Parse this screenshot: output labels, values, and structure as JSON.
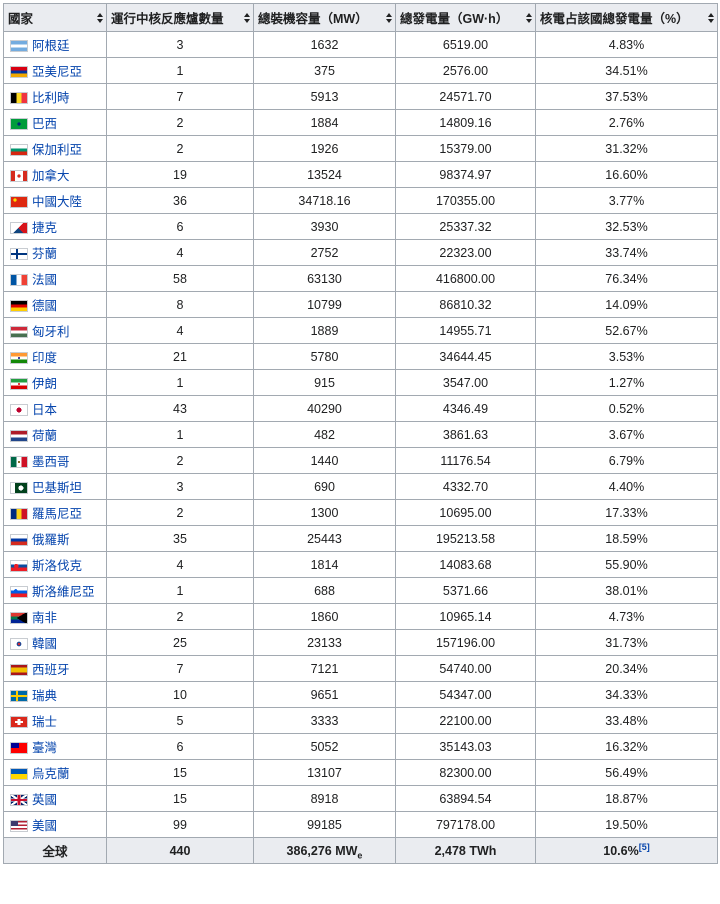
{
  "headers": [
    "國家",
    "運行中核反應爐數量",
    "總裝機容量（MW）",
    "總發電量（GW·h）",
    "核電占該國總發電量（%）"
  ],
  "rows": [
    {
      "country": "阿根廷",
      "flag": "argentina",
      "reactors": "3",
      "capacity": "1632",
      "generation": "6519.00",
      "share": "4.83%"
    },
    {
      "country": "亞美尼亞",
      "flag": "armenia",
      "reactors": "1",
      "capacity": "375",
      "generation": "2576.00",
      "share": "34.51%"
    },
    {
      "country": "比利時",
      "flag": "belgium",
      "reactors": "7",
      "capacity": "5913",
      "generation": "24571.70",
      "share": "37.53%"
    },
    {
      "country": "巴西",
      "flag": "brazil",
      "reactors": "2",
      "capacity": "1884",
      "generation": "14809.16",
      "share": "2.76%"
    },
    {
      "country": "保加利亞",
      "flag": "bulgaria",
      "reactors": "2",
      "capacity": "1926",
      "generation": "15379.00",
      "share": "31.32%"
    },
    {
      "country": "加拿大",
      "flag": "canada",
      "reactors": "19",
      "capacity": "13524",
      "generation": "98374.97",
      "share": "16.60%"
    },
    {
      "country": "中國大陸",
      "flag": "china",
      "reactors": "36",
      "capacity": "34718.16",
      "generation": "170355.00",
      "share": "3.77%"
    },
    {
      "country": "捷克",
      "flag": "czech",
      "reactors": "6",
      "capacity": "3930",
      "generation": "25337.32",
      "share": "32.53%"
    },
    {
      "country": "芬蘭",
      "flag": "finland",
      "reactors": "4",
      "capacity": "2752",
      "generation": "22323.00",
      "share": "33.74%"
    },
    {
      "country": "法國",
      "flag": "france",
      "reactors": "58",
      "capacity": "63130",
      "generation": "416800.00",
      "share": "76.34%"
    },
    {
      "country": "德國",
      "flag": "germany",
      "reactors": "8",
      "capacity": "10799",
      "generation": "86810.32",
      "share": "14.09%"
    },
    {
      "country": "匈牙利",
      "flag": "hungary",
      "reactors": "4",
      "capacity": "1889",
      "generation": "14955.71",
      "share": "52.67%"
    },
    {
      "country": "印度",
      "flag": "india",
      "reactors": "21",
      "capacity": "5780",
      "generation": "34644.45",
      "share": "3.53%"
    },
    {
      "country": "伊朗",
      "flag": "iran",
      "reactors": "1",
      "capacity": "915",
      "generation": "3547.00",
      "share": "1.27%"
    },
    {
      "country": "日本",
      "flag": "japan",
      "reactors": "43",
      "capacity": "40290",
      "generation": "4346.49",
      "share": "0.52%"
    },
    {
      "country": "荷蘭",
      "flag": "netherlands",
      "reactors": "1",
      "capacity": "482",
      "generation": "3861.63",
      "share": "3.67%"
    },
    {
      "country": "墨西哥",
      "flag": "mexico",
      "reactors": "2",
      "capacity": "1440",
      "generation": "11176.54",
      "share": "6.79%"
    },
    {
      "country": "巴基斯坦",
      "flag": "pakistan",
      "reactors": "3",
      "capacity": "690",
      "generation": "4332.70",
      "share": "4.40%"
    },
    {
      "country": "羅馬尼亞",
      "flag": "romania",
      "reactors": "2",
      "capacity": "1300",
      "generation": "10695.00",
      "share": "17.33%"
    },
    {
      "country": "俄羅斯",
      "flag": "russia",
      "reactors": "35",
      "capacity": "25443",
      "generation": "195213.58",
      "share": "18.59%"
    },
    {
      "country": "斯洛伐克",
      "flag": "slovakia",
      "reactors": "4",
      "capacity": "1814",
      "generation": "14083.68",
      "share": "55.90%"
    },
    {
      "country": "斯洛維尼亞",
      "flag": "slovenia",
      "reactors": "1",
      "capacity": "688",
      "generation": "5371.66",
      "share": "38.01%"
    },
    {
      "country": "南非",
      "flag": "southafrica",
      "reactors": "2",
      "capacity": "1860",
      "generation": "10965.14",
      "share": "4.73%"
    },
    {
      "country": "韓國",
      "flag": "korea",
      "reactors": "25",
      "capacity": "23133",
      "generation": "157196.00",
      "share": "31.73%"
    },
    {
      "country": "西班牙",
      "flag": "spain",
      "reactors": "7",
      "capacity": "7121",
      "generation": "54740.00",
      "share": "20.34%"
    },
    {
      "country": "瑞典",
      "flag": "sweden",
      "reactors": "10",
      "capacity": "9651",
      "generation": "54347.00",
      "share": "34.33%"
    },
    {
      "country": "瑞士",
      "flag": "switzerland",
      "reactors": "5",
      "capacity": "3333",
      "generation": "22100.00",
      "share": "33.48%"
    },
    {
      "country": "臺灣",
      "flag": "taiwan",
      "reactors": "6",
      "capacity": "5052",
      "generation": "35143.03",
      "share": "16.32%"
    },
    {
      "country": "烏克蘭",
      "flag": "ukraine",
      "reactors": "15",
      "capacity": "13107",
      "generation": "82300.00",
      "share": "56.49%"
    },
    {
      "country": "英國",
      "flag": "uk",
      "reactors": "15",
      "capacity": "8918",
      "generation": "63894.54",
      "share": "18.87%"
    },
    {
      "country": "美國",
      "flag": "usa",
      "reactors": "99",
      "capacity": "99185",
      "generation": "797178.00",
      "share": "19.50%"
    }
  ],
  "total": {
    "label": "全球",
    "reactors": "440",
    "capacity": "386,276 MW",
    "capacity_sub": "e",
    "generation": "2,478 TWh",
    "share": "10.6%",
    "ref": "[5]"
  }
}
